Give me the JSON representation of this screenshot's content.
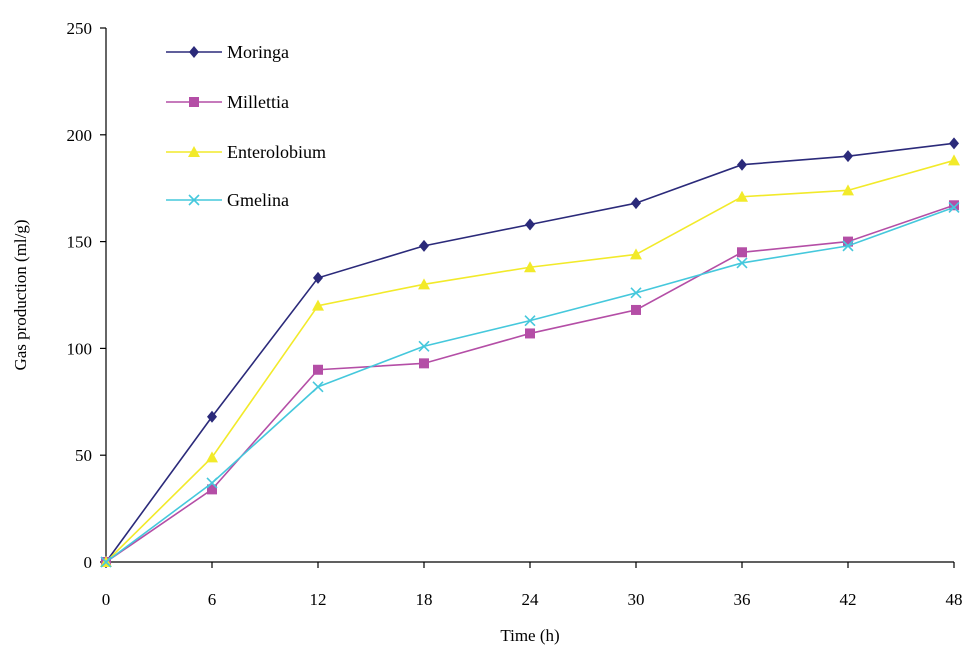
{
  "chart_data": {
    "type": "line",
    "title": "",
    "xlabel": "Time (h)",
    "ylabel": "Gas production (ml/g)",
    "x": [
      0,
      6,
      12,
      18,
      24,
      30,
      36,
      42,
      48
    ],
    "xticks": [
      "0",
      "6",
      "12",
      "18",
      "24",
      "30",
      "36",
      "42",
      "48"
    ],
    "xlim": [
      0,
      48
    ],
    "yticks": [
      "0",
      "50",
      "100",
      "150",
      "200",
      "250"
    ],
    "ylim": [
      0,
      250
    ],
    "grid": false,
    "legend_position": "top-left",
    "series": [
      {
        "name": "Moringa",
        "color": "#2b2a7a",
        "marker": "diamond",
        "values": [
          0,
          68,
          133,
          148,
          158,
          168,
          186,
          190,
          196
        ]
      },
      {
        "name": "Millettia",
        "color": "#b44ea6",
        "marker": "square",
        "values": [
          0,
          34,
          90,
          93,
          107,
          118,
          145,
          150,
          167
        ]
      },
      {
        "name": "Enterolobium",
        "color": "#f2ea2a",
        "marker": "triangle",
        "values": [
          0,
          49,
          120,
          130,
          138,
          144,
          171,
          174,
          188
        ]
      },
      {
        "name": "Gmelina",
        "color": "#45c8dc",
        "marker": "x",
        "values": [
          0,
          37,
          82,
          101,
          113,
          126,
          140,
          148,
          166
        ]
      }
    ]
  }
}
